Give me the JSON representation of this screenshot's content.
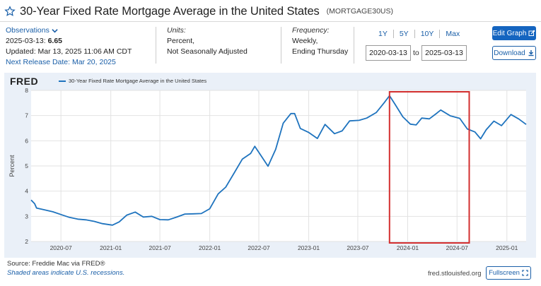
{
  "header": {
    "title": "30-Year Fixed Rate Mortgage Average in the United States",
    "series_id": "(MORTGAGE30US)"
  },
  "observations": {
    "label": "Observations",
    "date": "2025-03-13:",
    "value": "6.65",
    "updated": "Updated: Mar 13, 2025 11:06 AM CDT",
    "next_release": "Next Release Date: Mar 20, 2025"
  },
  "units": {
    "heading": "Units:",
    "line1": "Percent,",
    "line2": "Not Seasonally Adjusted"
  },
  "frequency": {
    "heading": "Frequency:",
    "line1": "Weekly,",
    "line2": "Ending Thursday"
  },
  "range": {
    "buttons": [
      "1Y",
      "5Y",
      "10Y",
      "Max"
    ],
    "start": "2020-03-13",
    "to_label": "to",
    "end": "2025-03-13"
  },
  "actions": {
    "edit_graph": "Edit Graph",
    "download": "Download"
  },
  "chart": {
    "logo": "FRED",
    "legend": "30-Year Fixed Rate Mortgage Average in the United States"
  },
  "footer": {
    "source": "Source: Freddie Mac via FRED®",
    "recession_note": "Shaded areas indicate U.S. recessions.",
    "url": "fred.stlouisfed.org",
    "fullscreen": "Fullscreen"
  },
  "colors": {
    "line": "#1e73be",
    "plot_bg": "#eaf0f8",
    "highlight_box": "#d32f2f",
    "accent": "#1565c0"
  },
  "chart_data": {
    "type": "line",
    "title": "30-Year Fixed Rate Mortgage Average in the United States",
    "ylabel": "Percent",
    "xlabel": "",
    "ylim": [
      2,
      8
    ],
    "yticks": [
      2,
      3,
      4,
      5,
      6,
      7,
      8
    ],
    "xticks": [
      "2020-07",
      "2021-01",
      "2021-07",
      "2022-01",
      "2022-07",
      "2023-01",
      "2023-07",
      "2024-01",
      "2024-07",
      "2025-01"
    ],
    "grid": true,
    "highlight_region": {
      "x_start": "2023-10-26",
      "x_end": "2024-08-15",
      "color": "#d32f2f"
    },
    "series": [
      {
        "name": "30-Year Fixed Rate Mortgage Average in the United States",
        "points": [
          [
            "2020-03-13",
            3.65
          ],
          [
            "2020-03-26",
            3.5
          ],
          [
            "2020-04-02",
            3.33
          ],
          [
            "2020-05-01",
            3.26
          ],
          [
            "2020-06-01",
            3.18
          ],
          [
            "2020-07-01",
            3.07
          ],
          [
            "2020-08-01",
            2.96
          ],
          [
            "2020-09-01",
            2.89
          ],
          [
            "2020-10-01",
            2.86
          ],
          [
            "2020-11-01",
            2.8
          ],
          [
            "2020-12-01",
            2.71
          ],
          [
            "2021-01-07",
            2.65
          ],
          [
            "2021-02-01",
            2.78
          ],
          [
            "2021-03-01",
            3.05
          ],
          [
            "2021-04-01",
            3.17
          ],
          [
            "2021-05-01",
            2.97
          ],
          [
            "2021-06-01",
            3.0
          ],
          [
            "2021-07-01",
            2.87
          ],
          [
            "2021-08-01",
            2.86
          ],
          [
            "2021-09-01",
            2.97
          ],
          [
            "2021-10-01",
            3.09
          ],
          [
            "2021-11-01",
            3.1
          ],
          [
            "2021-12-01",
            3.11
          ],
          [
            "2022-01-01",
            3.3
          ],
          [
            "2022-02-01",
            3.89
          ],
          [
            "2022-03-01",
            4.16
          ],
          [
            "2022-04-01",
            4.72
          ],
          [
            "2022-05-01",
            5.27
          ],
          [
            "2022-06-01",
            5.5
          ],
          [
            "2022-06-16",
            5.78
          ],
          [
            "2022-07-01",
            5.54
          ],
          [
            "2022-08-04",
            4.99
          ],
          [
            "2022-09-01",
            5.66
          ],
          [
            "2022-09-29",
            6.7
          ],
          [
            "2022-10-27",
            7.08
          ],
          [
            "2022-11-10",
            7.08
          ],
          [
            "2022-12-01",
            6.49
          ],
          [
            "2023-01-01",
            6.33
          ],
          [
            "2023-02-02",
            6.09
          ],
          [
            "2023-03-02",
            6.65
          ],
          [
            "2023-04-06",
            6.28
          ],
          [
            "2023-05-04",
            6.39
          ],
          [
            "2023-06-01",
            6.79
          ],
          [
            "2023-07-06",
            6.81
          ],
          [
            "2023-08-03",
            6.9
          ],
          [
            "2023-09-07",
            7.12
          ],
          [
            "2023-10-05",
            7.49
          ],
          [
            "2023-10-26",
            7.79
          ],
          [
            "2023-11-16",
            7.44
          ],
          [
            "2023-12-14",
            6.95
          ],
          [
            "2024-01-11",
            6.66
          ],
          [
            "2024-02-01",
            6.63
          ],
          [
            "2024-02-22",
            6.9
          ],
          [
            "2024-03-21",
            6.87
          ],
          [
            "2024-04-18",
            7.1
          ],
          [
            "2024-05-02",
            7.22
          ],
          [
            "2024-06-06",
            6.99
          ],
          [
            "2024-07-11",
            6.89
          ],
          [
            "2024-08-08",
            6.47
          ],
          [
            "2024-09-05",
            6.35
          ],
          [
            "2024-09-26",
            6.08
          ],
          [
            "2024-10-17",
            6.44
          ],
          [
            "2024-11-14",
            6.78
          ],
          [
            "2024-12-12",
            6.6
          ],
          [
            "2025-01-16",
            7.04
          ],
          [
            "2025-02-13",
            6.87
          ],
          [
            "2025-03-13",
            6.65
          ]
        ]
      }
    ]
  }
}
